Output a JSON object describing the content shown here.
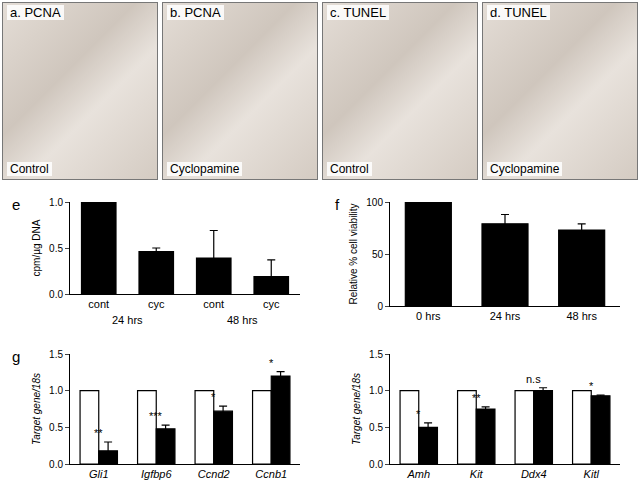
{
  "image_panels": [
    {
      "label": "a. PCNA",
      "condition": "Control"
    },
    {
      "label": "b. PCNA",
      "condition": "Cyclopamine"
    },
    {
      "label": "c. TUNEL",
      "condition": "Control"
    },
    {
      "label": "d. TUNEL",
      "condition": "Cyclopamine"
    }
  ],
  "chart_data": [
    {
      "type": "bar",
      "panel": "e",
      "y_label": "cpm/µg DNA",
      "categories": [
        "cont",
        "cyc",
        "cont",
        "cyc"
      ],
      "group_labels": [
        "24 hrs",
        "48 hrs"
      ],
      "values": [
        1.0,
        0.46,
        0.39,
        0.19
      ],
      "errors": [
        0,
        0.04,
        0.3,
        0.18
      ],
      "color": "#000000",
      "ylim": [
        0,
        1.0
      ],
      "yticks": [
        {
          "value": 0,
          "label": "0.0"
        },
        0.5,
        {
          "value": 1,
          "label": "1.0"
        }
      ]
    },
    {
      "type": "bar",
      "panel": "f",
      "y_label": "Relative % cell viability",
      "categories": [
        "0 hrs",
        "24 hrs",
        "48 hrs"
      ],
      "values": [
        100,
        79,
        73
      ],
      "errors": [
        0,
        9,
        6
      ],
      "color": "#000000",
      "ylim": [
        0,
        100
      ],
      "yticks": [
        0,
        50,
        100
      ]
    },
    {
      "type": "bar",
      "panel": "g",
      "y_label": "Target gene/18s",
      "categories": [
        "Gli1",
        "Igfbp6",
        "Ccnd2",
        "Ccnb1"
      ],
      "series": [
        {
          "color": "#ffffff",
          "values": [
            1,
            1,
            1,
            1
          ]
        },
        {
          "color": "#000000",
          "values": [
            0.18,
            0.48,
            0.72,
            1.2
          ],
          "errors": [
            0.12,
            0.05,
            0.07,
            0.06
          ],
          "significance": [
            "**",
            "***",
            "*",
            "*"
          ]
        }
      ],
      "ylim": [
        0,
        1.5
      ],
      "yticks": [
        {
          "value": 0,
          "label": "0.0"
        },
        0.5,
        {
          "value": 1,
          "label": "1.0"
        },
        1.5
      ]
    },
    {
      "type": "bar",
      "y_label": "Target gene/18s",
      "categories": [
        "Amh",
        "Kit",
        "Ddx4",
        "Kitl"
      ],
      "series": [
        {
          "color": "#ffffff",
          "values": [
            1,
            1,
            1,
            1
          ]
        },
        {
          "color": "#000000",
          "values": [
            0.5,
            0.75,
            1.0,
            0.93
          ],
          "errors": [
            0.06,
            0.03,
            0.04,
            0.01
          ],
          "significance": [
            "*",
            "**",
            "n.s",
            "*"
          ]
        }
      ],
      "ylim": [
        0,
        1.5
      ],
      "yticks": [
        {
          "value": 0,
          "label": "0.0"
        },
        0.5,
        {
          "value": 1,
          "label": "1.0"
        },
        1.5
      ]
    }
  ]
}
